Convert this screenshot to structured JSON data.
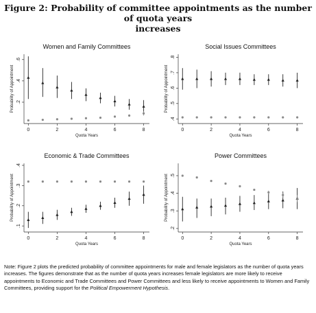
{
  "figure": {
    "title_line1": "Figure 2: Probability of committee appointments as the number of quota years",
    "title_line2": "increases"
  },
  "note": {
    "part1": "Note: Figure 2 plots the predicted probability of committee appointments for male and female legislators as the number of quota years increases. The figures demonstrate that as the number of quota years increases female legislators are more likely to receive appointments to Economic and Trade Committees and Power Committees and less likely to receive appointments to Women and Family Committees, providing support for the ",
    "italic": "Political Empowerment Hypothesis",
    "part2": "."
  },
  "chart_data": [
    {
      "type": "scatter",
      "title": "Women and Family Committees",
      "xlabel": "Quota Years",
      "ylabel": "Probability of Appointment",
      "xlim": [
        -0.3,
        8.4
      ],
      "ylim": [
        0,
        0.65
      ],
      "xticks": [
        0,
        2,
        4,
        6,
        8
      ],
      "xtick_labels": [
        "0",
        "2",
        "4",
        "6",
        "8"
      ],
      "yticks": [
        0.2,
        0.4,
        0.6
      ],
      "ytick_labels": [
        ".2",
        ".4",
        ".6"
      ],
      "series": [
        {
          "marker": "triangle",
          "x": [
            0,
            1,
            2,
            3,
            4,
            5,
            6,
            7,
            8
          ],
          "y": [
            0.43,
            0.38,
            0.34,
            0.31,
            0.27,
            0.24,
            0.21,
            0.18,
            0.16
          ],
          "ci_low": [
            0.23,
            0.25,
            0.24,
            0.23,
            0.21,
            0.19,
            0.16,
            0.13,
            0.1
          ],
          "ci_high": [
            0.63,
            0.52,
            0.45,
            0.39,
            0.33,
            0.29,
            0.26,
            0.23,
            0.22
          ]
        },
        {
          "marker": "circle",
          "x": [
            0,
            1,
            2,
            3,
            4,
            5,
            6,
            7,
            8
          ],
          "y": [
            0.03,
            0.035,
            0.04,
            0.045,
            0.05,
            0.055,
            0.065,
            0.075,
            0.095
          ],
          "ci_low": [
            0.03,
            0.035,
            0.04,
            0.045,
            0.05,
            0.055,
            0.06,
            0.065,
            0.075
          ],
          "ci_high": [
            0.03,
            0.035,
            0.04,
            0.045,
            0.05,
            0.055,
            0.07,
            0.085,
            0.115
          ]
        }
      ]
    },
    {
      "type": "scatter",
      "title": "Social Issues Committees",
      "xlabel": "Quota Years",
      "ylabel": "Probability of Appointment",
      "xlim": [
        -0.3,
        8.4
      ],
      "ylim": [
        0.37,
        0.82
      ],
      "xticks": [
        0,
        2,
        4,
        6,
        8
      ],
      "xtick_labels": [
        "0",
        "2",
        "4",
        "6",
        "8"
      ],
      "yticks": [
        0.4,
        0.5,
        0.6,
        0.7,
        0.8
      ],
      "ytick_labels": [
        ".4",
        ".5",
        ".6",
        ".7",
        ".8"
      ],
      "series": [
        {
          "marker": "triangle",
          "x": [
            0,
            1,
            2,
            3,
            4,
            5,
            6,
            7,
            8
          ],
          "y": [
            0.66,
            0.66,
            0.66,
            0.66,
            0.66,
            0.655,
            0.655,
            0.65,
            0.65
          ],
          "ci_low": [
            0.59,
            0.6,
            0.61,
            0.62,
            0.62,
            0.62,
            0.62,
            0.61,
            0.6
          ],
          "ci_high": [
            0.73,
            0.72,
            0.71,
            0.7,
            0.7,
            0.69,
            0.69,
            0.69,
            0.7
          ]
        },
        {
          "marker": "circle",
          "x": [
            0,
            1,
            2,
            3,
            4,
            5,
            6,
            7,
            8
          ],
          "y": [
            0.41,
            0.41,
            0.41,
            0.41,
            0.41,
            0.41,
            0.41,
            0.41,
            0.41
          ],
          "ci_low": [
            0.405,
            0.405,
            0.405,
            0.405,
            0.405,
            0.405,
            0.405,
            0.405,
            0.405
          ],
          "ci_high": [
            0.415,
            0.415,
            0.415,
            0.415,
            0.415,
            0.415,
            0.415,
            0.415,
            0.415
          ]
        }
      ]
    },
    {
      "type": "scatter",
      "title": "Economic & Trade Committees",
      "xlabel": "Quota Years",
      "ylabel": "Probability of Appointment",
      "xlim": [
        -0.3,
        8.4
      ],
      "ylim": [
        0.07,
        0.41
      ],
      "xticks": [
        0,
        2,
        4,
        6,
        8
      ],
      "xtick_labels": [
        "0",
        "2",
        "4",
        "6",
        "8"
      ],
      "yticks": [
        0.1,
        0.2,
        0.3,
        0.4
      ],
      "ytick_labels": [
        ".1",
        ".2",
        ".3",
        ".4"
      ],
      "series": [
        {
          "marker": "triangle",
          "x": [
            0,
            1,
            2,
            3,
            4,
            5,
            6,
            7,
            8
          ],
          "y": [
            0.13,
            0.14,
            0.155,
            0.17,
            0.185,
            0.2,
            0.215,
            0.235,
            0.255
          ],
          "ci_low": [
            0.09,
            0.11,
            0.13,
            0.15,
            0.165,
            0.18,
            0.19,
            0.2,
            0.21
          ],
          "ci_high": [
            0.17,
            0.17,
            0.18,
            0.19,
            0.205,
            0.22,
            0.24,
            0.27,
            0.3
          ]
        },
        {
          "marker": "circle",
          "x": [
            0,
            1,
            2,
            3,
            4,
            5,
            6,
            7,
            8
          ],
          "y": [
            0.32,
            0.32,
            0.32,
            0.32,
            0.32,
            0.32,
            0.32,
            0.32,
            0.32
          ],
          "ci_low": [
            0.315,
            0.315,
            0.315,
            0.315,
            0.315,
            0.315,
            0.315,
            0.315,
            0.315
          ],
          "ci_high": [
            0.325,
            0.325,
            0.325,
            0.325,
            0.325,
            0.325,
            0.325,
            0.325,
            0.325
          ]
        }
      ]
    },
    {
      "type": "scatter",
      "title": "Power Committees",
      "xlabel": "Quota Years",
      "ylabel": "Probability of Appointment",
      "xlim": [
        -0.3,
        8.4
      ],
      "ylim": [
        0.18,
        0.57
      ],
      "xticks": [
        0,
        2,
        4,
        6,
        8
      ],
      "xtick_labels": [
        "0",
        "2",
        "4",
        "6",
        "8"
      ],
      "yticks": [
        0.2,
        0.3,
        0.4,
        0.5
      ],
      "ytick_labels": [
        ".2",
        ".3",
        ".4",
        ".5"
      ],
      "series": [
        {
          "marker": "triangle",
          "x": [
            0,
            1,
            2,
            3,
            4,
            5,
            6,
            7,
            8
          ],
          "y": [
            0.31,
            0.32,
            0.325,
            0.33,
            0.34,
            0.345,
            0.355,
            0.36,
            0.37
          ],
          "ci_low": [
            0.24,
            0.26,
            0.27,
            0.28,
            0.295,
            0.305,
            0.31,
            0.315,
            0.31
          ],
          "ci_high": [
            0.38,
            0.37,
            0.37,
            0.375,
            0.385,
            0.39,
            0.4,
            0.41,
            0.43
          ]
        },
        {
          "marker": "circle",
          "x": [
            0,
            1,
            2,
            3,
            4,
            5,
            6,
            7,
            8
          ],
          "y": [
            0.5,
            0.49,
            0.47,
            0.455,
            0.44,
            0.42,
            0.405,
            0.39,
            0.37
          ],
          "ci_low": [
            0.5,
            0.49,
            0.47,
            0.455,
            0.44,
            0.415,
            0.395,
            0.375,
            0.35
          ],
          "ci_high": [
            0.5,
            0.49,
            0.47,
            0.455,
            0.44,
            0.425,
            0.415,
            0.405,
            0.39
          ]
        }
      ]
    }
  ]
}
